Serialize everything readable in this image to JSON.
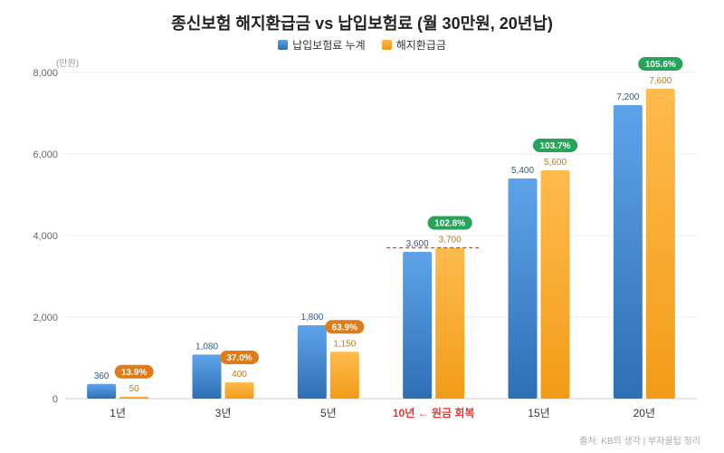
{
  "title": "종신보험 해지환급금 vs 납입보험료 (월 30만원, 20년납)",
  "unit_label": "(만원)",
  "source": "출처: KB의 생각 | 부자꿀팁 정리",
  "colors": {
    "paid": "#4a90d9",
    "paid_dark": "#2f6fb3",
    "refund": "#f5a623",
    "refund_dark": "#e8951a",
    "badge_orange": "#e07b1a",
    "badge_green": "#27a35a",
    "highlight_red": "#e03a2f"
  },
  "chart_data": {
    "type": "bar",
    "title": "종신보험 해지환급금 vs 납입보험료 (월 30만원, 20년납)",
    "ylabel": "(만원)",
    "xlabel": "",
    "ylim": [
      0,
      8000
    ],
    "yticks": [
      0,
      2000,
      4000,
      6000,
      8000
    ],
    "ytick_labels": [
      "0",
      "2,000",
      "4,000",
      "6,000",
      "8,000"
    ],
    "grid": true,
    "legend_position": "top-center",
    "categories": [
      "1년",
      "3년",
      "5년",
      "10년 ← 원금 회복",
      "15년",
      "20년"
    ],
    "highlight_category_index": 3,
    "series": [
      {
        "name": "납입보험료 누계",
        "values": [
          360,
          1080,
          1800,
          3600,
          5400,
          7200
        ],
        "labels": [
          "360",
          "1,080",
          "1,800",
          "3,600",
          "5,400",
          "7,200"
        ]
      },
      {
        "name": "해지환급금",
        "values": [
          50,
          400,
          1150,
          3700,
          5600,
          7600
        ],
        "labels": [
          "50",
          "400",
          "1,150",
          "3,700",
          "5,600",
          "7,600"
        ]
      }
    ],
    "ratio_badges": [
      "13.9%",
      "37.0%",
      "63.9%",
      "102.8%",
      "103.7%",
      "105.6%"
    ],
    "ratio_badge_colors": [
      "orange",
      "orange",
      "orange",
      "green",
      "green",
      "green"
    ],
    "reference_line": {
      "category_index": 3,
      "value": 3700,
      "style": "dashed",
      "color": "#e03a2f"
    }
  }
}
